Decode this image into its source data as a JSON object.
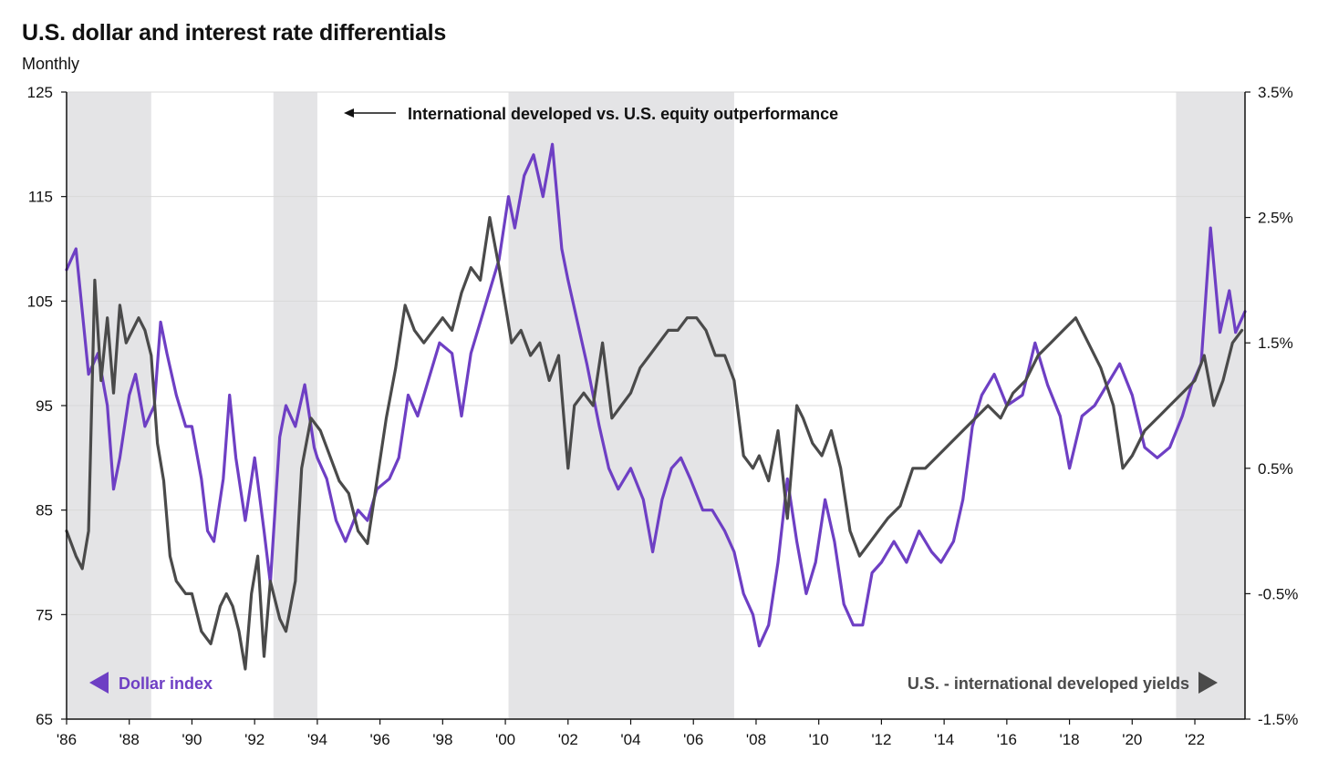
{
  "title": "U.S. dollar and interest rate differentials",
  "subtitle": "Monthly",
  "colors": {
    "dollar": "#6e3fc4",
    "yields": "#4a4a4a",
    "shade": "#e4e4e6",
    "grid": "#d9d9d9"
  },
  "chart_data": {
    "type": "line",
    "title": "U.S. dollar and interest rate differentials",
    "subtitle": "Monthly",
    "xlim": [
      1986.0,
      2023.6
    ],
    "x_ticks": [
      1986,
      1988,
      1990,
      1992,
      1994,
      1996,
      1998,
      2000,
      2002,
      2004,
      2006,
      2008,
      2010,
      2012,
      2014,
      2016,
      2018,
      2020,
      2022
    ],
    "x_tick_labels": [
      "'86",
      "'88",
      "'90",
      "'92",
      "'94",
      "'96",
      "'98",
      "'00",
      "'02",
      "'04",
      "'06",
      "'08",
      "'10",
      "'12",
      "'14",
      "'16",
      "'18",
      "'20",
      "'22"
    ],
    "y_left": {
      "lim": [
        65,
        125
      ],
      "ticks": [
        65,
        75,
        85,
        95,
        105,
        115,
        125
      ],
      "tick_labels": [
        "65",
        "75",
        "85",
        "95",
        "105",
        "115",
        "125"
      ]
    },
    "y_right": {
      "lim": [
        -1.5,
        3.5
      ],
      "ticks": [
        -1.5,
        -0.5,
        0.5,
        1.5,
        2.5,
        3.5
      ],
      "tick_labels": [
        "-1.5%",
        "-0.5%",
        "0.5%",
        "1.5%",
        "2.5%",
        "3.5%"
      ]
    },
    "shaded_periods": [
      [
        1986.0,
        1988.7
      ],
      [
        1992.6,
        1994.0
      ],
      [
        2000.1,
        2007.3
      ],
      [
        2021.4,
        2023.6
      ]
    ],
    "shade_label": "International developed vs. U.S. equity outperformance",
    "series": [
      {
        "name": "Dollar index",
        "axis": "left",
        "x": [
          1986.0,
          1986.3,
          1986.5,
          1986.7,
          1987.0,
          1987.3,
          1987.5,
          1987.7,
          1988.0,
          1988.2,
          1988.5,
          1988.8,
          1989.0,
          1989.2,
          1989.5,
          1989.8,
          1990.0,
          1990.3,
          1990.5,
          1990.7,
          1991.0,
          1991.2,
          1991.4,
          1991.7,
          1992.0,
          1992.3,
          1992.5,
          1992.8,
          1993.0,
          1993.3,
          1993.6,
          1993.9,
          1994.0,
          1994.3,
          1994.6,
          1994.9,
          1995.3,
          1995.6,
          1995.9,
          1996.3,
          1996.6,
          1996.9,
          1997.2,
          1997.6,
          1997.9,
          1998.3,
          1998.6,
          1998.9,
          1999.2,
          1999.5,
          1999.8,
          2000.1,
          2000.3,
          2000.6,
          2000.9,
          2001.2,
          2001.5,
          2001.8,
          2002.0,
          2002.3,
          2002.6,
          2003.0,
          2003.3,
          2003.6,
          2004.0,
          2004.4,
          2004.7,
          2005.0,
          2005.3,
          2005.6,
          2005.9,
          2006.3,
          2006.6,
          2007.0,
          2007.3,
          2007.6,
          2007.9,
          2008.1,
          2008.4,
          2008.7,
          2009.0,
          2009.3,
          2009.6,
          2009.9,
          2010.2,
          2010.5,
          2010.8,
          2011.1,
          2011.4,
          2011.7,
          2012.0,
          2012.4,
          2012.8,
          2013.2,
          2013.6,
          2013.9,
          2014.3,
          2014.6,
          2014.9,
          2015.2,
          2015.6,
          2016.0,
          2016.5,
          2016.9,
          2017.3,
          2017.7,
          2018.0,
          2018.4,
          2018.8,
          2019.2,
          2019.6,
          2020.0,
          2020.4,
          2020.8,
          2021.2,
          2021.6,
          2021.9,
          2022.2,
          2022.5,
          2022.8,
          2023.1,
          2023.3,
          2023.6
        ],
        "values": [
          108,
          110,
          104,
          98,
          100,
          95,
          87,
          90,
          96,
          98,
          93,
          95,
          103,
          100,
          96,
          93,
          93,
          88,
          83,
          82,
          88,
          96,
          90,
          84,
          90,
          83,
          78,
          92,
          95,
          93,
          97,
          91,
          90,
          88,
          84,
          82,
          85,
          84,
          87,
          88,
          90,
          96,
          94,
          98,
          101,
          100,
          94,
          100,
          103,
          106,
          109,
          115,
          112,
          117,
          119,
          115,
          120,
          110,
          107,
          103,
          99,
          93,
          89,
          87,
          89,
          86,
          81,
          86,
          89,
          90,
          88,
          85,
          85,
          83,
          81,
          77,
          75,
          72,
          74,
          80,
          88,
          82,
          77,
          80,
          86,
          82,
          76,
          74,
          74,
          79,
          80,
          82,
          80,
          83,
          81,
          80,
          82,
          86,
          93,
          96,
          98,
          95,
          96,
          101,
          97,
          94,
          89,
          94,
          95,
          97,
          99,
          96,
          91,
          90,
          91,
          94,
          97,
          99,
          112,
          102,
          106,
          102,
          104
        ]
      },
      {
        "name": "U.S. - international developed yields",
        "axis": "right",
        "x": [
          1986.0,
          1986.3,
          1986.5,
          1986.7,
          1986.9,
          1987.1,
          1987.3,
          1987.5,
          1987.7,
          1987.9,
          1988.1,
          1988.3,
          1988.5,
          1988.7,
          1988.9,
          1989.1,
          1989.3,
          1989.5,
          1989.8,
          1990.0,
          1990.3,
          1990.6,
          1990.9,
          1991.1,
          1991.3,
          1991.5,
          1991.7,
          1991.9,
          1992.1,
          1992.3,
          1992.5,
          1992.8,
          1993.0,
          1993.3,
          1993.5,
          1993.8,
          1994.1,
          1994.4,
          1994.7,
          1995.0,
          1995.3,
          1995.6,
          1995.9,
          1996.2,
          1996.5,
          1996.8,
          1997.1,
          1997.4,
          1997.7,
          1998.0,
          1998.3,
          1998.6,
          1998.9,
          1999.2,
          1999.5,
          1999.8,
          2000.0,
          2000.2,
          2000.5,
          2000.8,
          2001.1,
          2001.4,
          2001.7,
          2002.0,
          2002.2,
          2002.5,
          2002.8,
          2003.1,
          2003.4,
          2003.7,
          2004.0,
          2004.3,
          2004.6,
          2004.9,
          2005.2,
          2005.5,
          2005.8,
          2006.1,
          2006.4,
          2006.7,
          2007.0,
          2007.3,
          2007.6,
          2007.9,
          2008.1,
          2008.4,
          2008.7,
          2009.0,
          2009.3,
          2009.5,
          2009.8,
          2010.1,
          2010.4,
          2010.7,
          2011.0,
          2011.3,
          2011.6,
          2011.9,
          2012.2,
          2012.6,
          2013.0,
          2013.4,
          2013.8,
          2014.2,
          2014.6,
          2015.0,
          2015.4,
          2015.8,
          2016.2,
          2016.6,
          2017.0,
          2017.4,
          2017.8,
          2018.2,
          2018.6,
          2019.0,
          2019.4,
          2019.7,
          2020.0,
          2020.4,
          2020.8,
          2021.2,
          2021.6,
          2022.0,
          2022.3,
          2022.6,
          2022.9,
          2023.2,
          2023.5
        ],
        "values": [
          0.0,
          -0.2,
          -0.3,
          0.0,
          2.0,
          1.2,
          1.7,
          1.1,
          1.8,
          1.5,
          1.6,
          1.7,
          1.6,
          1.4,
          0.7,
          0.4,
          -0.2,
          -0.4,
          -0.5,
          -0.5,
          -0.8,
          -0.9,
          -0.6,
          -0.5,
          -0.6,
          -0.8,
          -1.1,
          -0.5,
          -0.2,
          -1.0,
          -0.4,
          -0.7,
          -0.8,
          -0.4,
          0.5,
          0.9,
          0.8,
          0.6,
          0.4,
          0.3,
          0.0,
          -0.1,
          0.4,
          0.9,
          1.3,
          1.8,
          1.6,
          1.5,
          1.6,
          1.7,
          1.6,
          1.9,
          2.1,
          2.0,
          2.5,
          2.1,
          1.8,
          1.5,
          1.6,
          1.4,
          1.5,
          1.2,
          1.4,
          0.5,
          1.0,
          1.1,
          1.0,
          1.5,
          0.9,
          1.0,
          1.1,
          1.3,
          1.4,
          1.5,
          1.6,
          1.6,
          1.7,
          1.7,
          1.6,
          1.4,
          1.4,
          1.2,
          0.6,
          0.5,
          0.6,
          0.4,
          0.8,
          0.1,
          1.0,
          0.9,
          0.7,
          0.6,
          0.8,
          0.5,
          0.0,
          -0.2,
          -0.1,
          0.0,
          0.1,
          0.2,
          0.5,
          0.5,
          0.6,
          0.7,
          0.8,
          0.9,
          1.0,
          0.9,
          1.1,
          1.2,
          1.4,
          1.5,
          1.6,
          1.7,
          1.5,
          1.3,
          1.0,
          0.5,
          0.6,
          0.8,
          0.9,
          1.0,
          1.1,
          1.2,
          1.4,
          1.0,
          1.2,
          1.5,
          1.6
        ]
      }
    ]
  },
  "annotations": {
    "equity_label": "International developed vs. U.S. equity outperformance",
    "dollar_label": "Dollar index",
    "yields_label": "U.S. - international developed yields"
  }
}
